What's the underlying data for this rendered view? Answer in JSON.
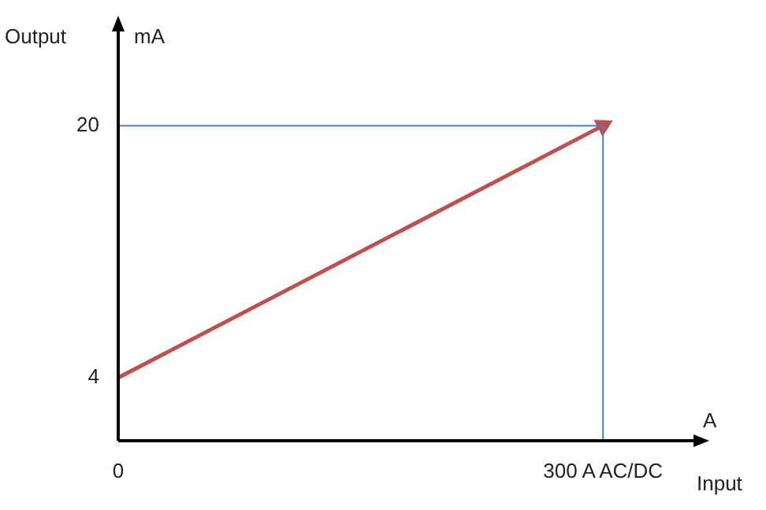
{
  "chart_data": {
    "type": "line",
    "ylabel": "Output",
    "xlabel": "Input",
    "annotations": [
      "mA",
      "A"
    ],
    "x": [
      0,
      300
    ],
    "series": [
      {
        "color": "#c0504d",
        "values": [
          4,
          20
        ]
      }
    ],
    "xlim": [
      0,
      356
    ],
    "xticks": [
      0,
      {
        "value": 300,
        "label": "300 A AC/DC"
      }
    ],
    "ylim": [
      0,
      26
    ],
    "yticks": [
      4,
      20
    ],
    "ref_lines": [
      {
        "axis": "y",
        "value": 20,
        "color": "#4f81bd"
      },
      {
        "axis": "x",
        "value": 300,
        "color": "#4f81bd"
      }
    ],
    "grid": false,
    "legend": false,
    "line_style": "solid"
  }
}
